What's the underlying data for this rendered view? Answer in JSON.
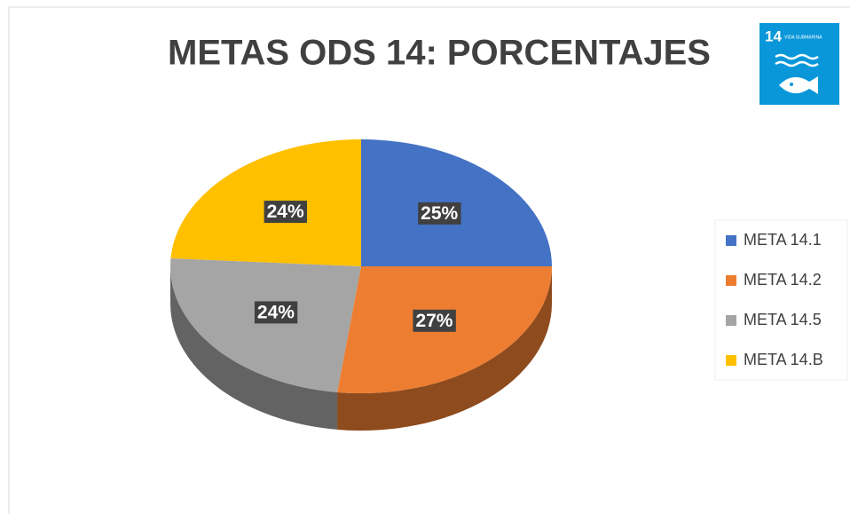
{
  "chart_data": {
    "type": "pie",
    "title": "METAS ODS 14: PORCENTAJES",
    "categories": [
      "META 14.1",
      "META 14.2",
      "META 14.5",
      "META 14.B"
    ],
    "values": [
      25,
      27,
      24,
      24
    ],
    "value_labels": [
      "25%",
      "27%",
      "24%",
      "24%"
    ],
    "colors": [
      "#4472c4",
      "#ed7d31",
      "#a5a5a5",
      "#ffc000"
    ],
    "legend": "right",
    "icon": {
      "number": "14",
      "label": "VIDA SUBMARINA"
    }
  }
}
